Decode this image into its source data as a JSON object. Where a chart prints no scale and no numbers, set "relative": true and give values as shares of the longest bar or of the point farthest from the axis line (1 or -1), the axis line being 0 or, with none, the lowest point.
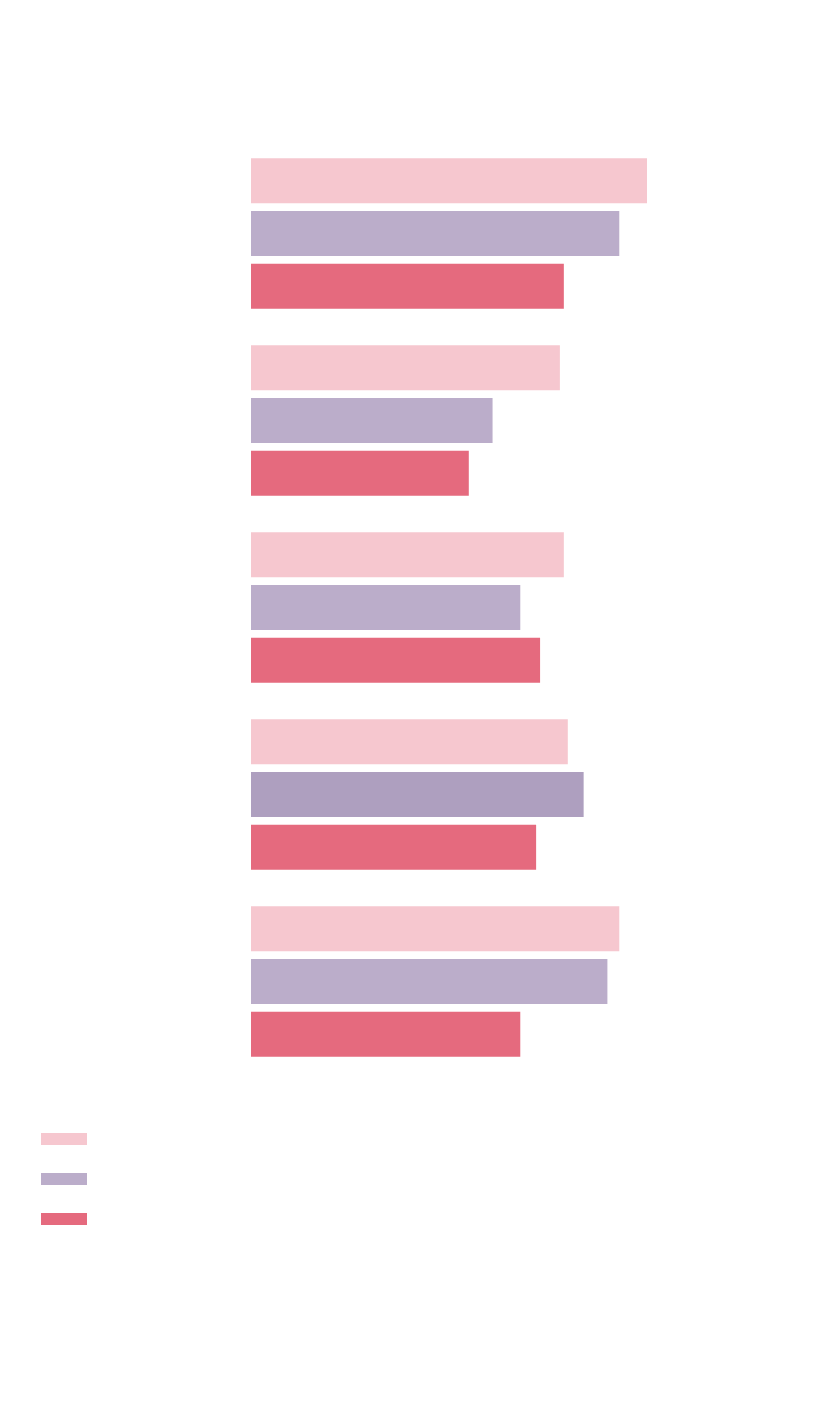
{
  "chart_data": {
    "type": "bar",
    "orientation": "horizontal",
    "relative": true,
    "categories": [
      null,
      null,
      null,
      null,
      null
    ],
    "series": [
      {
        "color": "#f6c7cf",
        "values": [
          1,
          0.78,
          0.79,
          0.8,
          0.93
        ]
      },
      {
        "color": "#bbadca",
        "colors": [
          "#bbadca",
          "#bbadca",
          "#bbadca",
          "#ae9fbf",
          "#bbadca"
        ],
        "values": [
          0.93,
          0.61,
          0.68,
          0.84,
          0.9
        ]
      },
      {
        "color": "#e56a7e",
        "values": [
          0.79,
          0.55,
          0.73,
          0.72,
          0.68
        ]
      }
    ]
  }
}
